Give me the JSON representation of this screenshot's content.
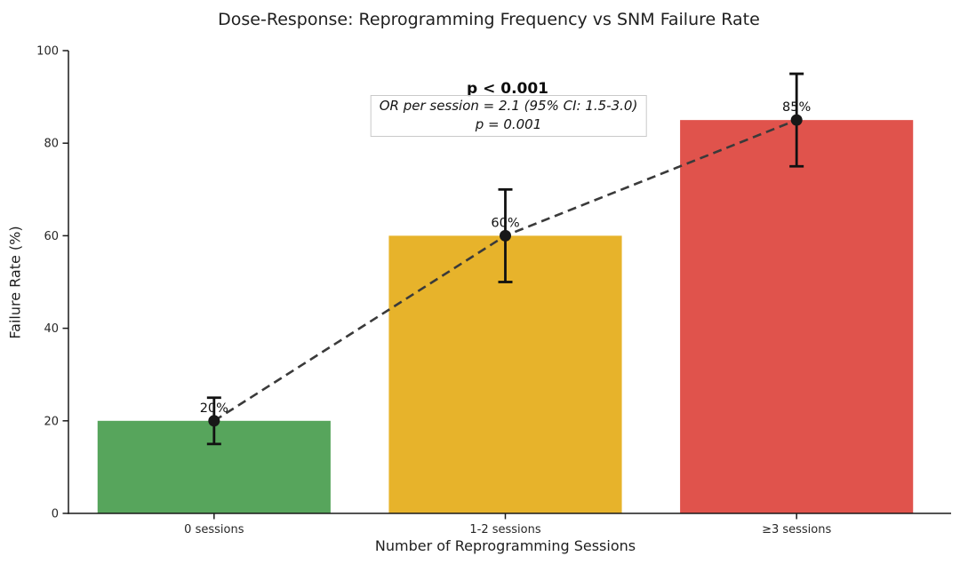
{
  "chart_data": {
    "type": "bar",
    "title": "Dose-Response: Reprogramming Frequency vs SNM Failure Rate",
    "xlabel": "Number of Reprogramming Sessions",
    "ylabel": "Failure Rate (%)",
    "categories": [
      "0 sessions",
      "1-2 sessions",
      "≥3 sessions"
    ],
    "values": [
      20,
      60,
      85
    ],
    "error_bars": [
      5,
      10,
      10
    ],
    "value_labels": [
      "20%",
      "60%",
      "85%"
    ],
    "bar_colors": [
      "#57a55c",
      "#e7b32b",
      "#e0534c"
    ],
    "trend_line": {
      "style": "dashed",
      "color": "#3a3a3a",
      "x": [
        0,
        1,
        2
      ],
      "y": [
        20,
        60,
        85
      ]
    },
    "marker_color": "#181818",
    "error_color": "#111111",
    "ylim": [
      0,
      100
    ],
    "yticks": [
      "0",
      "20",
      "40",
      "60",
      "80",
      "100"
    ],
    "grid": false,
    "legend": null,
    "annotations": {
      "significance_label": "p < 0.001",
      "stats_box": {
        "line1": "OR per session = 2.1 (95% CI: 1.5-3.0)",
        "line2": "p = 0.001"
      }
    }
  }
}
